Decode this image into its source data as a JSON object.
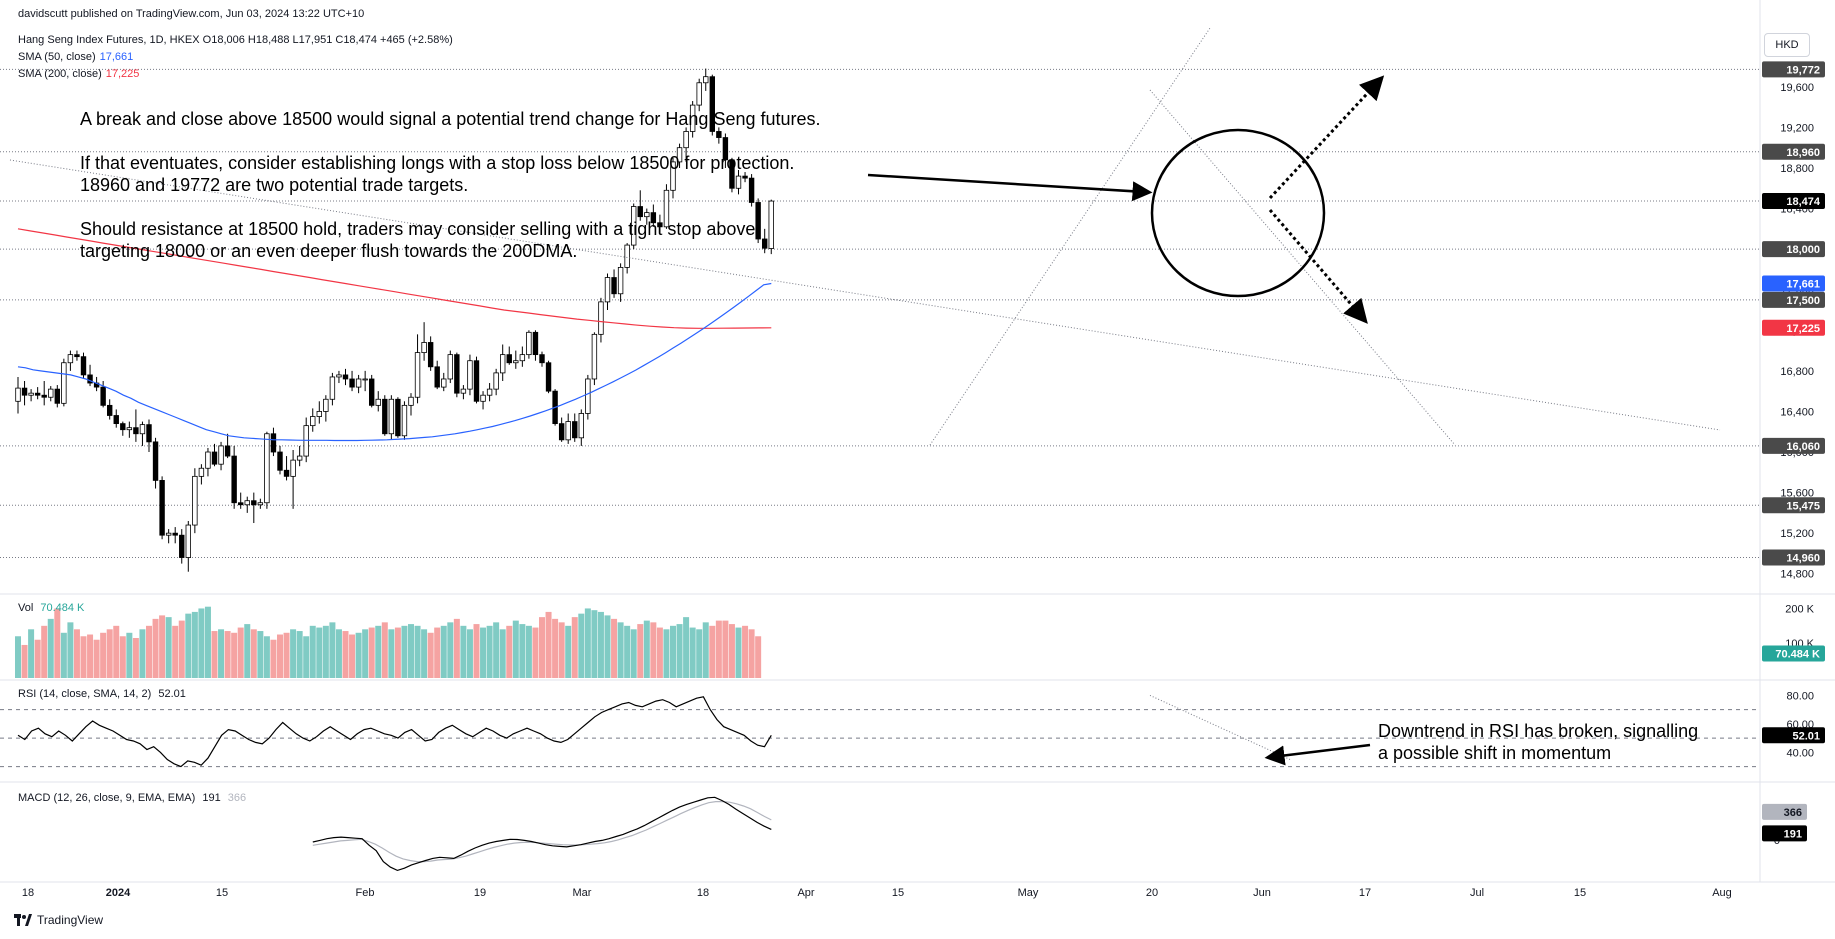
{
  "header": {
    "publisher": "davidscutt published on TradingView.com, Jun 03, 2024 13:22 UTC+10",
    "symbol_line": "Hang Seng Index Futures, 1D, HKEX  O18,006  H18,488  L17,951  C18,474  +465 (+2.58%)",
    "sma50_label": "SMA (50, close)",
    "sma50_value": "17,661",
    "sma200_label": "SMA (200, close)",
    "sma200_value": "17,225",
    "currency": "HKD"
  },
  "annotations": {
    "line1": "A break and close above 18500 would signal a potential trend change for Hang Seng futures.",
    "line2": "If that eventuates, consider establishing longs with a stop loss below 18500 for protection.",
    "line3": "18960 and 19772 are two potential trade targets.",
    "line4": "Should resistance at 18500 hold, traders may consider selling with a tight stop above",
    "line5": "targeting 18000 or an even deeper flush towards the 200DMA.",
    "rsi_note1": "Downtrend in RSI has broken, signalling",
    "rsi_note2": "a possible shift in momentum"
  },
  "panes": {
    "vol_label": "Vol",
    "vol_value": "70.484 K",
    "rsi_label": "RSI (14, close, SMA, 14, 2)",
    "rsi_value": "52.01",
    "macd_label": "MACD (12, 26, close, 9, EMA, EMA)",
    "macd_value": "191",
    "macd_signal_value": "366"
  },
  "footer": {
    "brand": "TradingView"
  },
  "colors": {
    "up": "#ffffff",
    "down": "#000000",
    "sma50": "#2962ff",
    "sma200": "#f23645",
    "vol_up": "#26a69a",
    "vol_down": "#ef5350"
  },
  "chart_data": {
    "type": "candlestick",
    "title": "Hang Seng Index Futures, 1D, HKEX",
    "ohlc": [
      [
        16500,
        16740,
        16380,
        16630
      ],
      [
        16630,
        16700,
        16460,
        16560
      ],
      [
        16560,
        16620,
        16500,
        16580
      ],
      [
        16580,
        16640,
        16520,
        16560
      ],
      [
        16560,
        16700,
        16460,
        16540
      ],
      [
        16540,
        16650,
        16500,
        16620
      ],
      [
        16620,
        16660,
        16440,
        16480
      ],
      [
        16480,
        16920,
        16450,
        16880
      ],
      [
        16880,
        17000,
        16800,
        16960
      ],
      [
        16960,
        17000,
        16900,
        16940
      ],
      [
        16940,
        16980,
        16720,
        16760
      ],
      [
        16760,
        16860,
        16650,
        16680
      ],
      [
        16680,
        16740,
        16600,
        16640
      ],
      [
        16640,
        16700,
        16440,
        16460
      ],
      [
        16460,
        16520,
        16320,
        16360
      ],
      [
        16360,
        16420,
        16240,
        16280
      ],
      [
        16280,
        16300,
        16160,
        16220
      ],
      [
        16220,
        16300,
        16140,
        16240
      ],
      [
        16240,
        16420,
        16100,
        16180
      ],
      [
        16180,
        16300,
        16060,
        16270
      ],
      [
        16270,
        16320,
        16000,
        16100
      ],
      [
        16100,
        16140,
        15640,
        15720
      ],
      [
        15720,
        15760,
        15140,
        15180
      ],
      [
        15180,
        15240,
        15100,
        15200
      ],
      [
        15200,
        15260,
        15100,
        15180
      ],
      [
        15180,
        15240,
        14900,
        14960
      ],
      [
        14960,
        15320,
        14820,
        15280
      ],
      [
        15280,
        15840,
        15200,
        15760
      ],
      [
        15760,
        15880,
        15680,
        15840
      ],
      [
        15840,
        16040,
        15760,
        16000
      ],
      [
        16000,
        16080,
        15860,
        15880
      ],
      [
        15880,
        16100,
        15820,
        16060
      ],
      [
        16060,
        16180,
        15940,
        15960
      ],
      [
        15960,
        16060,
        15440,
        15500
      ],
      [
        15500,
        15600,
        15440,
        15480
      ],
      [
        15480,
        15560,
        15400,
        15520
      ],
      [
        15520,
        15600,
        15300,
        15480
      ],
      [
        15480,
        15540,
        15440,
        15500
      ],
      [
        15500,
        16200,
        15440,
        16180
      ],
      [
        16180,
        16240,
        15960,
        16000
      ],
      [
        16000,
        16060,
        15780,
        15820
      ],
      [
        15820,
        15960,
        15720,
        15760
      ],
      [
        15760,
        16020,
        15440,
        15920
      ],
      [
        15920,
        16060,
        15860,
        15960
      ],
      [
        15960,
        16340,
        15900,
        16260
      ],
      [
        16260,
        16430,
        16200,
        16350
      ],
      [
        16350,
        16500,
        16280,
        16400
      ],
      [
        16400,
        16560,
        16300,
        16520
      ],
      [
        16520,
        16780,
        16460,
        16740
      ],
      [
        16740,
        16800,
        16680,
        16760
      ],
      [
        16760,
        16820,
        16660,
        16720
      ],
      [
        16720,
        16800,
        16600,
        16640
      ],
      [
        16640,
        16760,
        16580,
        16720
      ],
      [
        16720,
        16800,
        16600,
        16720
      ],
      [
        16720,
        16760,
        16440,
        16460
      ],
      [
        16460,
        16600,
        16400,
        16520
      ],
      [
        16520,
        16560,
        16160,
        16180
      ],
      [
        16180,
        16560,
        16120,
        16520
      ],
      [
        16520,
        16540,
        16140,
        16160
      ],
      [
        16160,
        16500,
        16120,
        16460
      ],
      [
        16460,
        16580,
        16360,
        16540
      ],
      [
        16540,
        17160,
        16480,
        16980
      ],
      [
        16980,
        17280,
        16900,
        17080
      ],
      [
        17080,
        17140,
        16800,
        16840
      ],
      [
        16840,
        16900,
        16620,
        16640
      ],
      [
        16640,
        16780,
        16600,
        16720
      ],
      [
        16720,
        17000,
        16680,
        16960
      ],
      [
        16960,
        16980,
        16540,
        16580
      ],
      [
        16580,
        16660,
        16520,
        16620
      ],
      [
        16620,
        16960,
        16560,
        16900
      ],
      [
        16900,
        16940,
        16480,
        16500
      ],
      [
        16500,
        16600,
        16420,
        16560
      ],
      [
        16560,
        16680,
        16500,
        16620
      ],
      [
        16620,
        16820,
        16560,
        16780
      ],
      [
        16780,
        17060,
        16700,
        16960
      ],
      [
        16960,
        17040,
        16860,
        16880
      ],
      [
        16880,
        17000,
        16820,
        16900
      ],
      [
        16900,
        17040,
        16840,
        16960
      ],
      [
        16960,
        17200,
        16920,
        17180
      ],
      [
        17180,
        17200,
        16900,
        16960
      ],
      [
        16960,
        16990,
        16840,
        16880
      ],
      [
        16880,
        16900,
        16580,
        16600
      ],
      [
        16600,
        16620,
        16260,
        16280
      ],
      [
        16280,
        16340,
        16100,
        16120
      ],
      [
        16120,
        16380,
        16080,
        16300
      ],
      [
        16300,
        16380,
        16100,
        16140
      ],
      [
        16140,
        16420,
        16060,
        16380
      ],
      [
        16380,
        16760,
        16320,
        16720
      ],
      [
        16720,
        17180,
        16660,
        17160
      ],
      [
        17160,
        17520,
        17080,
        17480
      ],
      [
        17480,
        17760,
        17400,
        17720
      ],
      [
        17720,
        17800,
        17520,
        17560
      ],
      [
        17560,
        17860,
        17480,
        17820
      ],
      [
        17820,
        18060,
        17760,
        18040
      ],
      [
        18040,
        18450,
        18000,
        18420
      ],
      [
        18420,
        18580,
        18280,
        18320
      ],
      [
        18320,
        18400,
        18240,
        18360
      ],
      [
        18360,
        18440,
        18220,
        18260
      ],
      [
        18260,
        18340,
        18160,
        18220
      ],
      [
        18220,
        18640,
        18200,
        18580
      ],
      [
        18580,
        18900,
        18500,
        18860
      ],
      [
        18860,
        19040,
        18800,
        19000
      ],
      [
        19000,
        19200,
        18860,
        19160
      ],
      [
        19160,
        19460,
        19100,
        19420
      ],
      [
        19420,
        19680,
        19360,
        19640
      ],
      [
        19640,
        19780,
        19560,
        19700
      ],
      [
        19700,
        19720,
        19120,
        19160
      ],
      [
        19160,
        19200,
        19040,
        19100
      ],
      [
        19100,
        19140,
        18800,
        18880
      ],
      [
        18880,
        18900,
        18560,
        18600
      ],
      [
        18600,
        18780,
        18540,
        18720
      ],
      [
        18720,
        18760,
        18660,
        18700
      ],
      [
        18700,
        18740,
        18420,
        18460
      ],
      [
        18460,
        18500,
        18060,
        18100
      ],
      [
        18100,
        18200,
        17960,
        18009
      ],
      [
        18006,
        18488,
        17951,
        18474
      ]
    ],
    "sma50": [
      16840,
      16830,
      16810,
      16800,
      16790,
      16780,
      16770,
      16760,
      16740,
      16720,
      16690,
      16660,
      16630,
      16600,
      16560,
      16530,
      16490,
      16460,
      16430,
      16400,
      16370,
      16340,
      16310,
      16280,
      16250,
      16220,
      16200,
      16180,
      16160,
      16150,
      16140,
      16135,
      16130,
      16125,
      16120,
      16120,
      16118,
      16116,
      16115,
      16115,
      16115,
      16115,
      16114,
      16114,
      16114,
      16114,
      16115,
      16116,
      16118,
      16120,
      16124,
      16128,
      16132,
      16138,
      16144,
      16150,
      16160,
      16170,
      16180,
      16192,
      16205,
      16220,
      16236,
      16252,
      16270,
      16290,
      16310,
      16332,
      16355,
      16380,
      16405,
      16432,
      16460,
      16490,
      16520,
      16552,
      16585,
      16620,
      16656,
      16692,
      16730,
      16768,
      16808,
      16850,
      16892,
      16936,
      16980,
      17026,
      17072,
      17120,
      17168,
      17218,
      17268,
      17320,
      17372,
      17426,
      17480,
      17536,
      17592,
      17648,
      17661
    ],
    "sma200": [
      18200,
      18180,
      18160,
      18140,
      18120,
      18100,
      18080,
      18060,
      18040,
      18020,
      18000,
      17980,
      17960,
      17940,
      17920,
      17900,
      17880,
      17860,
      17840,
      17820,
      17800,
      17780,
      17760,
      17740,
      17720,
      17700,
      17680,
      17660,
      17640,
      17620,
      17600,
      17580,
      17560,
      17540,
      17520,
      17500,
      17480,
      17460,
      17440,
      17420,
      17400,
      17385,
      17370,
      17355,
      17340,
      17325,
      17310,
      17298,
      17286,
      17274,
      17262,
      17250,
      17240,
      17232,
      17226,
      17222,
      17220,
      17220,
      17221,
      17222,
      17223,
      17224,
      17225
    ],
    "horizontal_levels": [
      19772,
      18960,
      18474,
      18000,
      17500,
      16060,
      15475,
      14960
    ],
    "price_axis": [
      19600,
      19200,
      18800,
      18400,
      18000,
      17600,
      17200,
      16800,
      16400,
      16000,
      15600,
      15200,
      14800
    ],
    "price_labels": [
      "19,772",
      "18,960",
      "18,474",
      "18,000",
      "17,661",
      "17,500",
      "17,225",
      "16,060",
      "15,475",
      "14,960"
    ],
    "x_ticks": [
      "18",
      "2024",
      "15",
      "Feb",
      "19",
      "Mar",
      "18",
      "Apr",
      "15",
      "May",
      "20",
      "Jun",
      "17",
      "Jul",
      "15",
      "Aug"
    ],
    "volume": [
      120,
      95,
      140,
      110,
      150,
      170,
      200,
      130,
      160,
      140,
      120,
      125,
      110,
      130,
      140,
      150,
      120,
      130,
      115,
      140,
      150,
      170,
      180,
      175,
      150,
      165,
      185,
      190,
      200,
      205,
      135,
      140,
      135,
      130,
      145,
      155,
      140,
      135,
      120,
      110,
      125,
      130,
      140,
      135,
      120,
      150,
      145,
      150,
      160,
      140,
      135,
      125,
      130,
      140,
      145,
      150,
      160,
      140,
      145,
      150,
      155,
      150,
      140,
      130,
      145,
      150,
      160,
      170,
      150,
      140,
      155,
      145,
      150,
      160,
      140,
      150,
      165,
      155,
      150,
      145,
      175,
      190,
      170,
      160,
      150,
      175,
      185,
      200,
      195,
      190,
      180,
      170,
      160,
      150,
      140,
      155,
      165,
      160,
      145,
      140,
      150,
      155,
      175,
      145,
      140,
      160,
      150,
      165,
      165,
      155,
      145,
      150,
      140,
      120
    ],
    "volume_axis": [
      "200 K",
      "100 K"
    ],
    "rsi": [
      52,
      49,
      55,
      57,
      53,
      51,
      55,
      52,
      48,
      53,
      58,
      62,
      59,
      57,
      55,
      52,
      49,
      48,
      46,
      42,
      44,
      40,
      35,
      32,
      30,
      34,
      33,
      31,
      36,
      44,
      52,
      56,
      55,
      52,
      49,
      47,
      46,
      50,
      56,
      61,
      57,
      53,
      50,
      48,
      51,
      55,
      58,
      55,
      52,
      49,
      53,
      56,
      57,
      55,
      53,
      52,
      50,
      54,
      56,
      52,
      48,
      49,
      54,
      57,
      59,
      56,
      53,
      51,
      54,
      57,
      55,
      52,
      50,
      53,
      55,
      57,
      55,
      53,
      50,
      48,
      47,
      49,
      53,
      57,
      61,
      65,
      68,
      70,
      72,
      74,
      75,
      73,
      72,
      74,
      76,
      77,
      75,
      72,
      74,
      76,
      78,
      79,
      70,
      63,
      58,
      56,
      54,
      52,
      48,
      45,
      44,
      52
    ],
    "rsi_axis": [
      80,
      60,
      40
    ],
    "macd_axis": [
      0
    ],
    "macd": [
      -40,
      -10,
      20,
      40,
      50,
      40,
      30,
      20,
      -100,
      -200,
      -400,
      -500,
      -560,
      -520,
      -460,
      -420,
      -380,
      -340,
      -320,
      -330,
      -340,
      -280,
      -210,
      -150,
      -100,
      -60,
      -30,
      -10,
      10,
      5,
      -10,
      -30,
      -60,
      -90,
      -110,
      -120,
      -130,
      -110,
      -90,
      -60,
      -30,
      -10,
      20,
      60,
      100,
      150,
      200,
      260,
      330,
      400,
      470,
      540,
      600,
      650,
      690,
      730,
      770,
      780,
      720,
      650,
      560,
      480,
      400,
      320,
      250,
      191
    ],
    "macd_signal": [
      -100,
      -80,
      -60,
      -40,
      -20,
      -10,
      0,
      10,
      -30,
      -80,
      -150,
      -230,
      -300,
      -350,
      -380,
      -400,
      -400,
      -390,
      -370,
      -360,
      -355,
      -330,
      -300,
      -260,
      -220,
      -180,
      -140,
      -110,
      -80,
      -60,
      -50,
      -45,
      -50,
      -60,
      -70,
      -80,
      -90,
      -95,
      -95,
      -90,
      -80,
      -70,
      -55,
      -30,
      0,
      40,
      80,
      130,
      180,
      240,
      300,
      360,
      420,
      480,
      540,
      590,
      640,
      680,
      700,
      700,
      690,
      660,
      620,
      570,
      500,
      430,
      366
    ],
    "rsi_label": "RSI (14, close, SMA, 14, 2)",
    "macd_label": "MACD (12, 26, close, 9, EMA, EMA)"
  }
}
